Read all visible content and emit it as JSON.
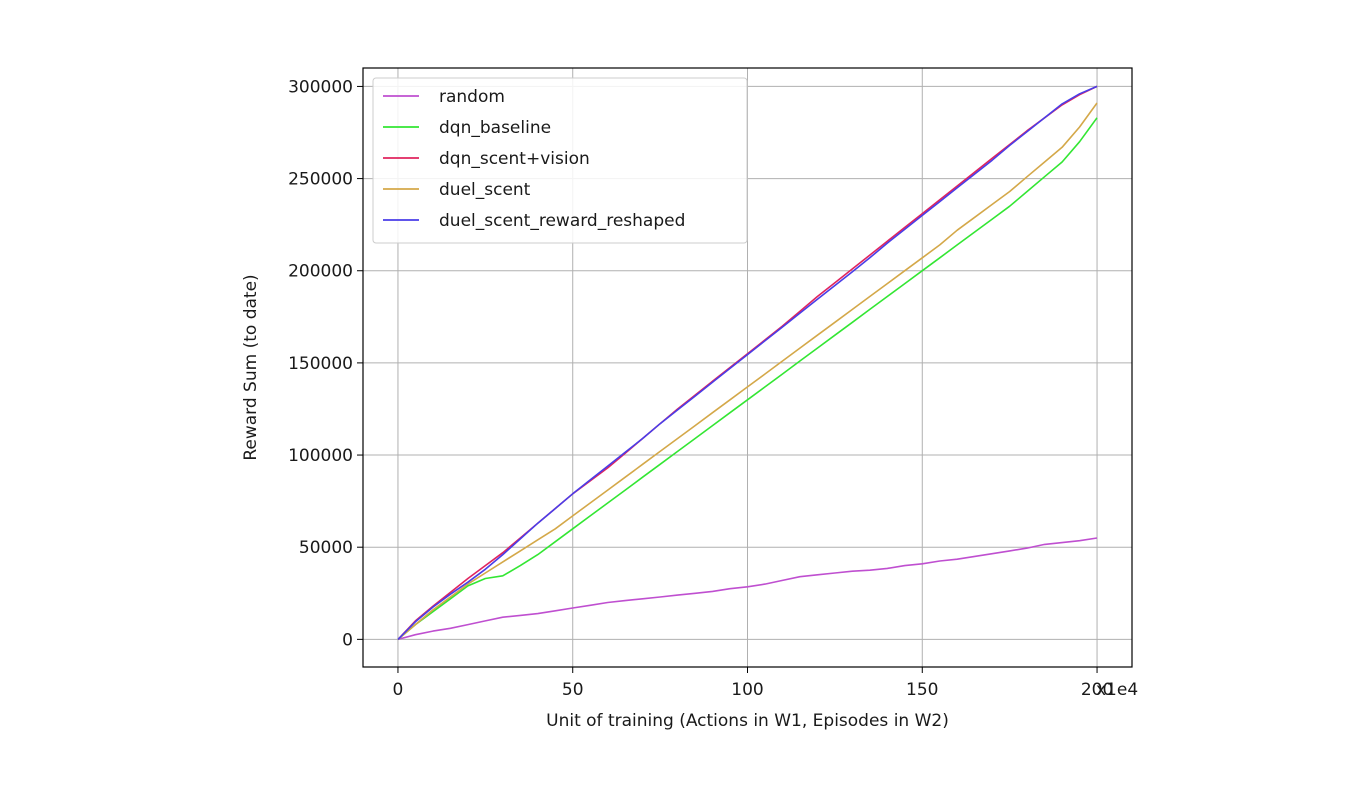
{
  "chart_data": {
    "type": "line",
    "title": "",
    "xlabel": "Unit of training (Actions in W1, Episodes in W2)",
    "ylabel": "Reward Sum (to date)",
    "x_scale_label": "x1e4",
    "xlim": [
      -10,
      210
    ],
    "ylim": [
      -15000,
      310000
    ],
    "xticks": [
      0,
      50,
      100,
      150,
      200
    ],
    "xtick_labels": [
      "0",
      "50",
      "100",
      "150",
      "200"
    ],
    "yticks": [
      0,
      50000,
      100000,
      150000,
      200000,
      250000,
      300000
    ],
    "ytick_labels": [
      "0",
      "50000",
      "100000",
      "150000",
      "200000",
      "250000",
      "300000"
    ],
    "grid": true,
    "legend_position": "top-left",
    "series": [
      {
        "name": "random",
        "color": "#bf4fd0",
        "x": [
          0,
          5,
          10,
          15,
          20,
          25,
          30,
          35,
          40,
          45,
          50,
          55,
          60,
          65,
          70,
          75,
          80,
          85,
          90,
          95,
          100,
          105,
          110,
          115,
          120,
          125,
          130,
          135,
          140,
          145,
          150,
          155,
          160,
          165,
          170,
          175,
          180,
          185,
          190,
          195,
          200
        ],
        "y": [
          0,
          2500,
          4500,
          6000,
          8000,
          10000,
          12000,
          13000,
          14000,
          15500,
          17000,
          18500,
          20000,
          21000,
          22000,
          23000,
          24000,
          25000,
          26000,
          27500,
          28500,
          30000,
          32000,
          34000,
          35000,
          36000,
          37000,
          37500,
          38500,
          40000,
          41000,
          42500,
          43500,
          45000,
          46500,
          48000,
          49500,
          51500,
          52500,
          53500,
          55000
        ]
      },
      {
        "name": "dqn_baseline",
        "color": "#33e633",
        "x": [
          0,
          5,
          10,
          15,
          20,
          25,
          30,
          35,
          40,
          45,
          50,
          55,
          60,
          65,
          70,
          75,
          80,
          85,
          90,
          95,
          100,
          105,
          110,
          115,
          120,
          125,
          130,
          135,
          140,
          145,
          150,
          155,
          160,
          165,
          170,
          175,
          180,
          185,
          190,
          195,
          200
        ],
        "y": [
          0,
          8000,
          15000,
          22000,
          29000,
          33000,
          34500,
          40000,
          46000,
          53000,
          60000,
          67000,
          74000,
          81000,
          88000,
          95000,
          102000,
          109000,
          116000,
          123000,
          130000,
          137000,
          144000,
          151000,
          158000,
          165000,
          172000,
          179000,
          186000,
          193000,
          200000,
          207000,
          214000,
          221000,
          228000,
          235000,
          243000,
          251000,
          259000,
          270000,
          283000
        ]
      },
      {
        "name": "dqn_scent+vision",
        "color": "#e0245e",
        "x": [
          0,
          5,
          10,
          15,
          20,
          25,
          30,
          35,
          40,
          45,
          50,
          55,
          60,
          65,
          70,
          75,
          80,
          85,
          90,
          95,
          100,
          105,
          110,
          115,
          120,
          125,
          130,
          135,
          140,
          145,
          150,
          155,
          160,
          165,
          170,
          175,
          180,
          185,
          190,
          195,
          200
        ],
        "y": [
          0,
          10000,
          18000,
          25500,
          33000,
          40000,
          47000,
          55000,
          63000,
          71000,
          79000,
          86000,
          93000,
          101000,
          109000,
          117000,
          125000,
          132500,
          140000,
          147500,
          155000,
          162500,
          170000,
          178000,
          186000,
          193500,
          201000,
          208500,
          216000,
          223500,
          231000,
          238500,
          246000,
          253500,
          261000,
          268500,
          276000,
          283000,
          290000,
          295500,
          300000
        ]
      },
      {
        "name": "duel_scent",
        "color": "#d4a849",
        "x": [
          0,
          5,
          10,
          15,
          20,
          25,
          30,
          35,
          40,
          45,
          50,
          55,
          60,
          65,
          70,
          75,
          80,
          85,
          90,
          95,
          100,
          105,
          110,
          115,
          120,
          125,
          130,
          135,
          140,
          145,
          150,
          155,
          160,
          165,
          170,
          175,
          180,
          185,
          190,
          195,
          200
        ],
        "y": [
          0,
          8000,
          16000,
          23000,
          30000,
          36000,
          42000,
          48000,
          54000,
          60000,
          67000,
          74000,
          81000,
          88000,
          95000,
          102000,
          109000,
          116000,
          123000,
          130000,
          137000,
          144000,
          151000,
          158000,
          165000,
          172000,
          179000,
          186000,
          193000,
          200000,
          207000,
          214000,
          222000,
          229000,
          236000,
          243000,
          251000,
          259000,
          267000,
          278000,
          291000
        ]
      },
      {
        "name": "duel_scent_reward_reshaped",
        "color": "#4a3de8",
        "x": [
          0,
          5,
          10,
          15,
          20,
          25,
          30,
          35,
          40,
          45,
          50,
          55,
          60,
          65,
          70,
          75,
          80,
          85,
          90,
          95,
          100,
          105,
          110,
          115,
          120,
          125,
          130,
          135,
          140,
          145,
          150,
          155,
          160,
          165,
          170,
          175,
          180,
          185,
          190,
          195,
          200
        ],
        "y": [
          0,
          9500,
          17500,
          24500,
          31000,
          38000,
          46000,
          54500,
          63000,
          71000,
          79000,
          86500,
          94000,
          101500,
          109000,
          117000,
          124500,
          132000,
          139500,
          147000,
          154500,
          162000,
          169500,
          177000,
          184500,
          192000,
          199500,
          207000,
          215000,
          222500,
          230000,
          237500,
          245000,
          252500,
          260000,
          268000,
          275500,
          283000,
          290500,
          296000,
          300000
        ]
      }
    ]
  }
}
